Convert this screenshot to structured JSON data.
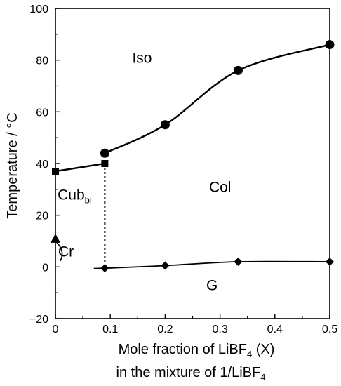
{
  "chart_data": {
    "type": "line",
    "xlabel_line1": "Mole fraction of LiBF",
    "xlabel_sub": "4",
    "xlabel_tail": " (X)",
    "xlabel_line2": "in the mixture of 1/LiBF",
    "xlabel_line2_sub": "4",
    "ylabel": "Temperature / °C",
    "xlim": [
      0,
      0.5
    ],
    "ylim": [
      -20,
      100
    ],
    "x_ticks": [
      "0",
      "0.1",
      "0.2",
      "0.3",
      "0.4",
      "0.5"
    ],
    "y_ticks": [
      "−20",
      "0",
      "20",
      "40",
      "60",
      "80",
      "100"
    ],
    "grid": false,
    "series": [
      {
        "x": [
          0.0,
          0.09
        ],
        "y": [
          37,
          40
        ],
        "marker": "square"
      },
      {
        "x": [
          0.09,
          0.2,
          0.333,
          0.5
        ],
        "y": [
          44,
          55,
          76,
          86
        ],
        "marker": "circle"
      },
      {
        "x": [
          0.09,
          0.2,
          0.333,
          0.5
        ],
        "y": [
          -0.5,
          0.5,
          2,
          2
        ],
        "marker": "diamond"
      },
      {
        "x": [
          0.0
        ],
        "y": [
          11
        ],
        "marker": "triangle"
      }
    ],
    "regions": [
      {
        "label": "Iso",
        "x": 0.14,
        "y": 79
      },
      {
        "label": "Col",
        "x": 0.28,
        "y": 29
      },
      {
        "label": "Cub",
        "sub": "bi",
        "x": 0.004,
        "y": 26
      },
      {
        "label": "Cr",
        "x": 0.005,
        "y": 4
      },
      {
        "label": "G",
        "x": 0.275,
        "y": -9
      }
    ]
  }
}
